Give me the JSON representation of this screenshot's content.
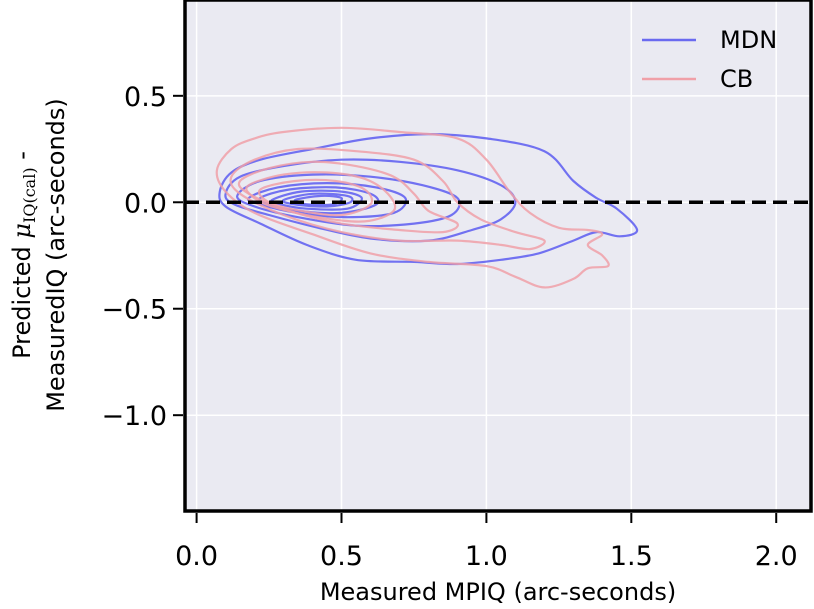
{
  "chart_data": {
    "type": "contour",
    "xlabel": "Measured MPIQ (arc-seconds)",
    "ylabel_line1_prefix": "Predicted ",
    "ylabel_line1_mu": "μ",
    "ylabel_line1_sub": "IQ(cal)",
    "ylabel_line1_suffix": " -",
    "ylabel_line2": "MeasuredIQ (arc-seconds)",
    "xlim": [
      -0.04,
      2.12
    ],
    "ylim": [
      -1.45,
      0.95
    ],
    "xticks": [
      {
        "value": 0.0,
        "label": "0.0"
      },
      {
        "value": 0.5,
        "label": "0.5"
      },
      {
        "value": 1.0,
        "label": "1.0"
      },
      {
        "value": 1.5,
        "label": "1.5"
      },
      {
        "value": 2.0,
        "label": "2.0"
      }
    ],
    "yticks": [
      {
        "value": 0.5,
        "label": "0.5"
      },
      {
        "value": 0.0,
        "label": "0.0"
      },
      {
        "value": -0.5,
        "label": "−0.5"
      },
      {
        "value": -1.0,
        "label": "−1.0"
      }
    ],
    "reference_line": {
      "y": 0.0,
      "style": "dashed",
      "color": "#000000"
    },
    "grid": true,
    "background": "#eaeaf2",
    "legend_position": "top-right",
    "series": [
      {
        "name": "MDN",
        "color": "#6a6af0",
        "contours": [
          [
            [
              0.08,
              0.05
            ],
            [
              0.12,
              0.14
            ],
            [
              0.22,
              0.2
            ],
            [
              0.4,
              0.25
            ],
            [
              0.6,
              0.3
            ],
            [
              0.8,
              0.32
            ],
            [
              1.0,
              0.3
            ],
            [
              1.2,
              0.24
            ],
            [
              1.3,
              0.1
            ],
            [
              1.38,
              0.02
            ],
            [
              1.45,
              -0.03
            ],
            [
              1.52,
              -0.13
            ],
            [
              1.46,
              -0.16
            ],
            [
              1.38,
              -0.14
            ],
            [
              1.3,
              -0.18
            ],
            [
              1.18,
              -0.24
            ],
            [
              1.05,
              -0.27
            ],
            [
              0.9,
              -0.29
            ],
            [
              0.75,
              -0.28
            ],
            [
              0.55,
              -0.27
            ],
            [
              0.38,
              -0.2
            ],
            [
              0.22,
              -0.1
            ],
            [
              0.1,
              -0.02
            ]
          ],
          [
            [
              0.1,
              0.04
            ],
            [
              0.15,
              0.12
            ],
            [
              0.3,
              0.17
            ],
            [
              0.5,
              0.2
            ],
            [
              0.7,
              0.19
            ],
            [
              0.9,
              0.15
            ],
            [
              1.05,
              0.08
            ],
            [
              1.1,
              0.0
            ],
            [
              1.05,
              -0.08
            ],
            [
              0.95,
              -0.13
            ],
            [
              0.8,
              -0.18
            ],
            [
              0.6,
              -0.17
            ],
            [
              0.42,
              -0.12
            ],
            [
              0.25,
              -0.06
            ],
            [
              0.13,
              -0.01
            ]
          ],
          [
            [
              0.14,
              0.03
            ],
            [
              0.22,
              0.1
            ],
            [
              0.4,
              0.13
            ],
            [
              0.6,
              0.12
            ],
            [
              0.78,
              0.08
            ],
            [
              0.9,
              0.02
            ],
            [
              0.88,
              -0.06
            ],
            [
              0.75,
              -0.1
            ],
            [
              0.55,
              -0.11
            ],
            [
              0.35,
              -0.07
            ],
            [
              0.2,
              -0.02
            ]
          ],
          [
            [
              0.18,
              0.02
            ],
            [
              0.28,
              0.07
            ],
            [
              0.45,
              0.09
            ],
            [
              0.62,
              0.07
            ],
            [
              0.72,
              0.02
            ],
            [
              0.68,
              -0.05
            ],
            [
              0.52,
              -0.07
            ],
            [
              0.35,
              -0.05
            ],
            [
              0.22,
              -0.01
            ]
          ],
          [
            [
              0.22,
              0.02
            ],
            [
              0.32,
              0.06
            ],
            [
              0.48,
              0.07
            ],
            [
              0.6,
              0.04
            ],
            [
              0.62,
              -0.01
            ],
            [
              0.5,
              -0.05
            ],
            [
              0.35,
              -0.04
            ],
            [
              0.25,
              -0.01
            ]
          ],
          [
            [
              0.26,
              0.01
            ],
            [
              0.36,
              0.05
            ],
            [
              0.5,
              0.05
            ],
            [
              0.57,
              0.02
            ],
            [
              0.52,
              -0.03
            ],
            [
              0.38,
              -0.03
            ],
            [
              0.29,
              -0.01
            ]
          ],
          [
            [
              0.3,
              0.01
            ],
            [
              0.4,
              0.04
            ],
            [
              0.52,
              0.03
            ],
            [
              0.53,
              0.0
            ],
            [
              0.45,
              -0.02
            ],
            [
              0.34,
              -0.01
            ]
          ],
          [
            [
              0.34,
              0.01
            ],
            [
              0.43,
              0.03
            ],
            [
              0.5,
              0.02
            ],
            [
              0.47,
              -0.01
            ],
            [
              0.38,
              -0.01
            ]
          ]
        ]
      },
      {
        "name": "CB",
        "color": "#f0a0a8",
        "contours": [
          [
            [
              0.07,
              0.15
            ],
            [
              0.12,
              0.25
            ],
            [
              0.2,
              0.3
            ],
            [
              0.3,
              0.33
            ],
            [
              0.5,
              0.35
            ],
            [
              0.7,
              0.33
            ],
            [
              0.9,
              0.3
            ],
            [
              1.0,
              0.2
            ],
            [
              1.08,
              0.05
            ],
            [
              1.15,
              -0.05
            ],
            [
              1.25,
              -0.12
            ],
            [
              1.35,
              -0.13
            ],
            [
              1.4,
              -0.15
            ],
            [
              1.35,
              -0.2
            ],
            [
              1.4,
              -0.25
            ],
            [
              1.42,
              -0.3
            ],
            [
              1.35,
              -0.31
            ],
            [
              1.3,
              -0.36
            ],
            [
              1.2,
              -0.4
            ],
            [
              1.1,
              -0.35
            ],
            [
              1.0,
              -0.3
            ],
            [
              0.8,
              -0.28
            ],
            [
              0.6,
              -0.24
            ],
            [
              0.4,
              -0.15
            ],
            [
              0.2,
              -0.05
            ],
            [
              0.1,
              0.05
            ]
          ],
          [
            [
              0.12,
              0.12
            ],
            [
              0.2,
              0.2
            ],
            [
              0.35,
              0.25
            ],
            [
              0.55,
              0.24
            ],
            [
              0.75,
              0.2
            ],
            [
              0.85,
              0.1
            ],
            [
              0.9,
              0.0
            ],
            [
              0.98,
              -0.08
            ],
            [
              1.1,
              -0.14
            ],
            [
              1.2,
              -0.18
            ],
            [
              1.15,
              -0.22
            ],
            [
              1.05,
              -0.2
            ],
            [
              0.9,
              -0.18
            ],
            [
              0.7,
              -0.18
            ],
            [
              0.5,
              -0.14
            ],
            [
              0.3,
              -0.06
            ],
            [
              0.15,
              0.04
            ]
          ],
          [
            [
              0.15,
              0.1
            ],
            [
              0.25,
              0.16
            ],
            [
              0.4,
              0.19
            ],
            [
              0.55,
              0.17
            ],
            [
              0.68,
              0.12
            ],
            [
              0.75,
              0.04
            ],
            [
              0.8,
              -0.04
            ],
            [
              0.9,
              -0.1
            ],
            [
              0.85,
              -0.14
            ],
            [
              0.7,
              -0.13
            ],
            [
              0.5,
              -0.1
            ],
            [
              0.32,
              -0.04
            ],
            [
              0.18,
              0.04
            ]
          ],
          [
            [
              0.18,
              0.08
            ],
            [
              0.3,
              0.13
            ],
            [
              0.45,
              0.14
            ],
            [
              0.58,
              0.11
            ],
            [
              0.66,
              0.04
            ],
            [
              0.68,
              -0.04
            ],
            [
              0.58,
              -0.09
            ],
            [
              0.42,
              -0.07
            ],
            [
              0.26,
              -0.02
            ],
            [
              0.19,
              0.03
            ]
          ],
          [
            [
              0.22,
              0.06
            ],
            [
              0.34,
              0.1
            ],
            [
              0.48,
              0.1
            ],
            [
              0.58,
              0.06
            ],
            [
              0.6,
              -0.01
            ],
            [
              0.5,
              -0.06
            ],
            [
              0.36,
              -0.04
            ],
            [
              0.25,
              0.0
            ]
          ]
        ]
      }
    ]
  }
}
